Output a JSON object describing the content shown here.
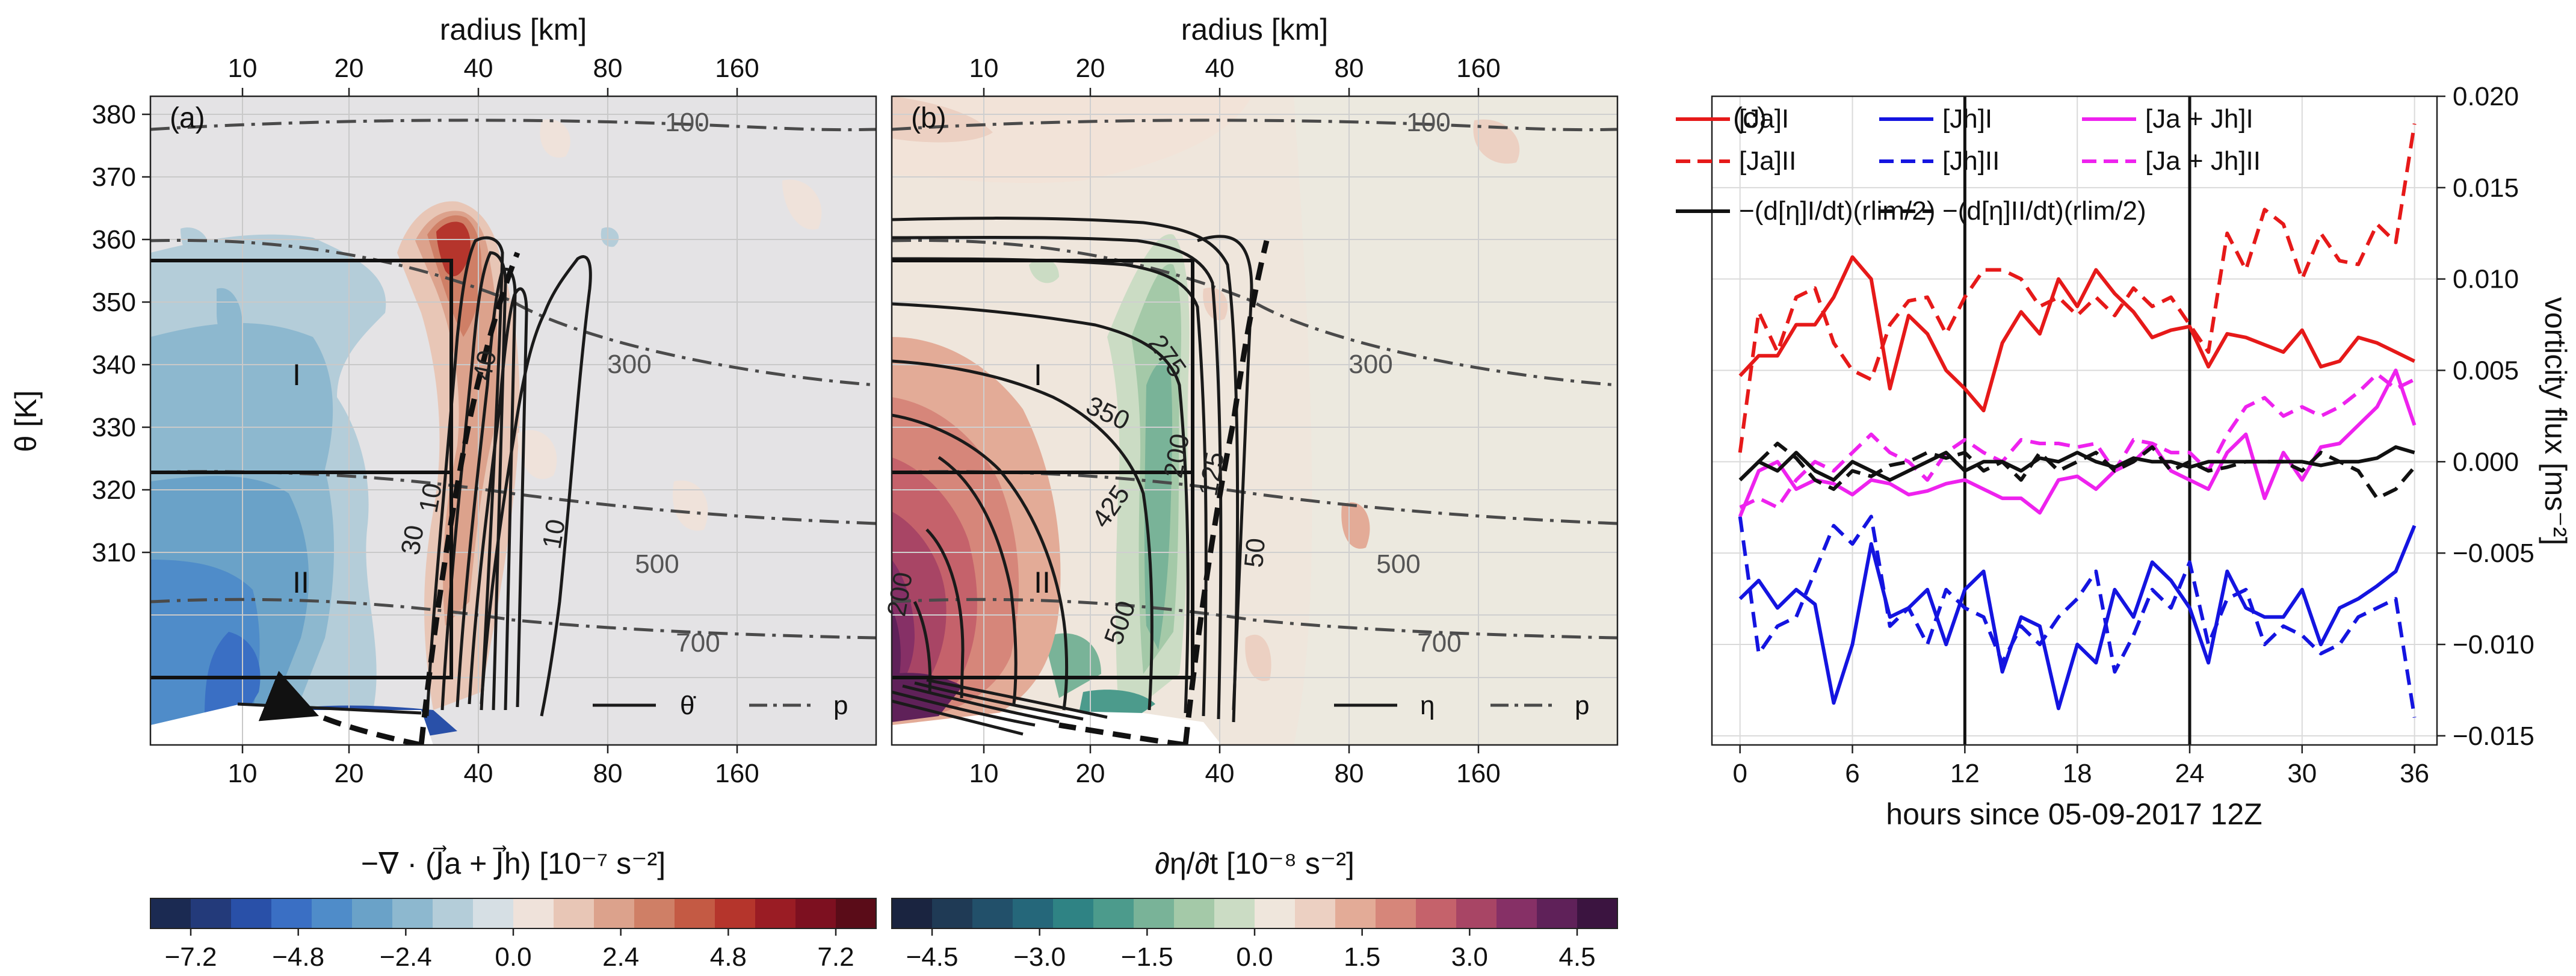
{
  "figure": {
    "panel_a": {
      "label": "(a)",
      "top_axis_label": "radius [km]",
      "top_ticks": [
        "10",
        "20",
        "40",
        "80",
        "160"
      ],
      "bottom_ticks": [
        "10",
        "20",
        "40",
        "80",
        "160"
      ],
      "y_label": "θ [K]",
      "y_ticks": [
        "380",
        "370",
        "360",
        "350",
        "340",
        "330",
        "320",
        "310"
      ],
      "region_labels": [
        "I",
        "II"
      ],
      "contour_labels": [
        "40",
        "30",
        "10",
        "10"
      ],
      "pressure_labels": [
        "100",
        "300",
        "500",
        "700"
      ],
      "legend": [
        {
          "label": "θ̇",
          "style": "solid"
        },
        {
          "label": "p",
          "style": "dashdot"
        }
      ],
      "colorbar": {
        "label": "−∇ · (J⃗a + J⃗h) [10⁻⁷ s⁻²]",
        "ticks": [
          "−7.2",
          "−4.8",
          "−2.4",
          "0.0",
          "2.4",
          "4.8",
          "7.2"
        ],
        "colors": [
          "#1b2a52",
          "#233a7a",
          "#2950a8",
          "#3a6fc4",
          "#4f8cc9",
          "#6aa2c8",
          "#8db8cf",
          "#b4cdd9",
          "#d6dfe4",
          "#efe2da",
          "#e8c6b6",
          "#dca28c",
          "#cf7f66",
          "#c45a44",
          "#b5352c",
          "#9a1c24",
          "#7d1020",
          "#5a0c18"
        ]
      }
    },
    "panel_b": {
      "label": "(b)",
      "top_axis_label": "radius [km]",
      "top_ticks": [
        "10",
        "20",
        "40",
        "80",
        "160"
      ],
      "bottom_ticks": [
        "10",
        "20",
        "40",
        "80",
        "160"
      ],
      "region_labels": [
        "I",
        "II"
      ],
      "contour_labels": [
        "275",
        "350",
        "200",
        "425",
        "125",
        "50",
        "500",
        "200"
      ],
      "pressure_labels": [
        "100",
        "300",
        "500",
        "700"
      ],
      "legend": [
        {
          "label": "η",
          "style": "solid"
        },
        {
          "label": "p",
          "style": "dashdot"
        }
      ],
      "colorbar": {
        "label": "∂η/∂t [10⁻⁸ s⁻²]",
        "ticks": [
          "−4.5",
          "−3.0",
          "−1.5",
          "0.0",
          "1.5",
          "3.0",
          "4.5"
        ],
        "colors": [
          "#1a2440",
          "#1f3a55",
          "#22506a",
          "#25677a",
          "#2f8384",
          "#4c9b8c",
          "#79b398",
          "#a4c9a8",
          "#cbdcc4",
          "#efe6dc",
          "#ecd0c2",
          "#e3ab97",
          "#d6867a",
          "#c5626b",
          "#a84565",
          "#863066",
          "#5f2159",
          "#3b1440"
        ]
      }
    },
    "panel_c": {
      "label": "(c)",
      "x_label": "hours since 05-09-2017 12Z",
      "y_label": "vorticity flux [ms⁻²]",
      "x_ticks": [
        "0",
        "6",
        "12",
        "18",
        "24",
        "30",
        "36"
      ],
      "y_ticks": [
        "0.020",
        "0.015",
        "0.010",
        "0.005",
        "0.000",
        "−0.005",
        "−0.010",
        "−0.015"
      ],
      "legend": [
        {
          "label": "[Ja]I",
          "color": "#e61919",
          "style": "solid"
        },
        {
          "label": "[Ja]II",
          "color": "#e61919",
          "style": "dashed"
        },
        {
          "label": "−(d[η]I/dt)(rlim/2)",
          "color": "#111111",
          "style": "solid"
        },
        {
          "label": "[Jh]I",
          "color": "#1414e0",
          "style": "solid"
        },
        {
          "label": "[Jh]II",
          "color": "#1414e0",
          "style": "dashed"
        },
        {
          "label": "−(d[η]II/dt)(rlim/2)",
          "color": "#111111",
          "style": "dashed"
        },
        {
          "label": "[Ja + Jh]I",
          "color": "#ee22ee",
          "style": "solid"
        },
        {
          "label": "[Ja + Jh]II",
          "color": "#ee22ee",
          "style": "dashed"
        }
      ]
    }
  },
  "chart_data": {
    "type": "line",
    "title": "",
    "xlabel": "hours since 05-09-2017 12Z",
    "ylabel": "vorticity flux [ms-2]",
    "xlim": [
      -1.5,
      37.2
    ],
    "ylim": [
      -0.0155,
      0.02
    ],
    "vlines": [
      12,
      24
    ],
    "x": [
      0,
      1,
      2,
      3,
      4,
      5,
      6,
      7,
      8,
      9,
      10,
      11,
      12,
      13,
      14,
      15,
      16,
      17,
      18,
      19,
      20,
      21,
      22,
      23,
      24,
      25,
      26,
      27,
      28,
      29,
      30,
      31,
      32,
      33,
      34,
      35,
      36
    ],
    "series": [
      {
        "name": "[Ja]I",
        "color": "#e61919",
        "dash": "solid",
        "values": [
          0.0047,
          0.0058,
          0.0058,
          0.0075,
          0.0075,
          0.009,
          0.0112,
          0.01,
          0.004,
          0.008,
          0.007,
          0.005,
          0.004,
          0.0028,
          0.0065,
          0.0082,
          0.007,
          0.01,
          0.0085,
          0.0105,
          0.0092,
          0.0082,
          0.0068,
          0.0072,
          0.0074,
          0.0052,
          0.007,
          0.0068,
          0.0064,
          0.006,
          0.0072,
          0.0052,
          0.0055,
          0.0068,
          0.0065,
          0.006,
          0.0055
        ]
      },
      {
        "name": "[Ja]II",
        "color": "#e61919",
        "dash": "dashed",
        "values": [
          0.0005,
          0.0082,
          0.006,
          0.009,
          0.0095,
          0.0065,
          0.005,
          0.0045,
          0.0075,
          0.0088,
          0.009,
          0.007,
          0.009,
          0.0105,
          0.0105,
          0.01,
          0.0085,
          0.009,
          0.008,
          0.009,
          0.008,
          0.0095,
          0.0085,
          0.009,
          0.0075,
          0.006,
          0.0125,
          0.0105,
          0.0138,
          0.013,
          0.01,
          0.0125,
          0.011,
          0.0108,
          0.013,
          0.012,
          0.0185
        ]
      },
      {
        "name": "[Jh]I",
        "color": "#1414e0",
        "dash": "solid",
        "values": [
          -0.0075,
          -0.0065,
          -0.008,
          -0.007,
          -0.0078,
          -0.0132,
          -0.01,
          -0.0045,
          -0.0085,
          -0.008,
          -0.007,
          -0.01,
          -0.007,
          -0.006,
          -0.0115,
          -0.0085,
          -0.009,
          -0.0135,
          -0.01,
          -0.011,
          -0.007,
          -0.0085,
          -0.0055,
          -0.0065,
          -0.008,
          -0.011,
          -0.006,
          -0.008,
          -0.0085,
          -0.0085,
          -0.007,
          -0.01,
          -0.008,
          -0.0075,
          -0.0068,
          -0.006,
          -0.0035
        ]
      },
      {
        "name": "[Jh]II",
        "color": "#1414e0",
        "dash": "dashed",
        "values": [
          -0.003,
          -0.0105,
          -0.009,
          -0.0085,
          -0.006,
          -0.0035,
          -0.0045,
          -0.003,
          -0.009,
          -0.008,
          -0.01,
          -0.007,
          -0.008,
          -0.0085,
          -0.011,
          -0.009,
          -0.01,
          -0.0085,
          -0.0075,
          -0.006,
          -0.0115,
          -0.0095,
          -0.007,
          -0.008,
          -0.0055,
          -0.01,
          -0.0075,
          -0.007,
          -0.01,
          -0.009,
          -0.0095,
          -0.0105,
          -0.01,
          -0.0085,
          -0.008,
          -0.0075,
          -0.014
        ]
      },
      {
        "name": "[Ja+Jh]I",
        "color": "#ee22ee",
        "dash": "solid",
        "values": [
          -0.003,
          -0.0005,
          0.0,
          -0.0015,
          -0.001,
          -0.0012,
          -0.0018,
          -0.001,
          -0.0012,
          -0.0018,
          -0.0016,
          -0.0012,
          -0.001,
          -0.0015,
          -0.002,
          -0.002,
          -0.0028,
          -0.001,
          -0.0008,
          -0.0015,
          -0.0005,
          0.0,
          0.001,
          -0.0005,
          -0.001,
          -0.0015,
          0.0005,
          0.0015,
          -0.002,
          0.0005,
          -0.001,
          0.0008,
          0.001,
          0.002,
          0.003,
          0.005,
          0.002
        ]
      },
      {
        "name": "[Ja+Jh]II",
        "color": "#ee22ee",
        "dash": "dashed",
        "values": [
          -0.0025,
          -0.002,
          -0.0025,
          -0.001,
          0.0,
          -0.0005,
          0.0005,
          0.0015,
          0.0005,
          0.0,
          -0.001,
          0.0005,
          0.0012,
          0.0005,
          0.0,
          0.0012,
          0.001,
          0.001,
          0.0008,
          0.001,
          -0.0005,
          0.0012,
          0.001,
          0.0005,
          0.0005,
          -0.0005,
          0.0015,
          0.003,
          0.0035,
          0.0025,
          0.003,
          0.0025,
          0.003,
          0.0038,
          0.0048,
          0.004,
          0.0045
        ]
      },
      {
        "name": "-d[eta]I/dt rlim/2",
        "color": "#111111",
        "dash": "solid",
        "values": [
          -0.001,
          0.0,
          -0.0005,
          0.0005,
          -0.0005,
          -0.001,
          0.0,
          -0.0005,
          -0.001,
          -0.0005,
          0.0,
          0.0005,
          -0.0005,
          0.0,
          0.0,
          -0.0005,
          0.0002,
          0.0,
          0.0005,
          0.0,
          -0.0003,
          0.0002,
          0.0,
          0.0,
          -0.0003,
          0.0,
          0.0,
          0.0,
          0.0,
          0.0,
          0.0,
          -0.0002,
          0.0,
          0.0,
          0.0002,
          0.0008,
          0.0005
        ]
      },
      {
        "name": "-d[eta]II/dt rlim/2",
        "color": "#111111",
        "dash": "dashed",
        "values": [
          -0.001,
          0.0,
          0.001,
          0.0002,
          -0.001,
          -0.0015,
          -0.0005,
          -0.0008,
          -0.0002,
          0.0,
          0.0005,
          0.0002,
          0.0005,
          -0.0005,
          0.0,
          -0.001,
          0.0005,
          -0.0005,
          0.0,
          0.0005,
          -0.0005,
          0.0,
          0.0008,
          -0.0005,
          0.0,
          -0.0005,
          -0.0003,
          0.0,
          0.0,
          0.0,
          -0.0005,
          0.0005,
          0.0,
          -0.0005,
          -0.002,
          -0.0015,
          -0.0003
        ]
      }
    ]
  }
}
